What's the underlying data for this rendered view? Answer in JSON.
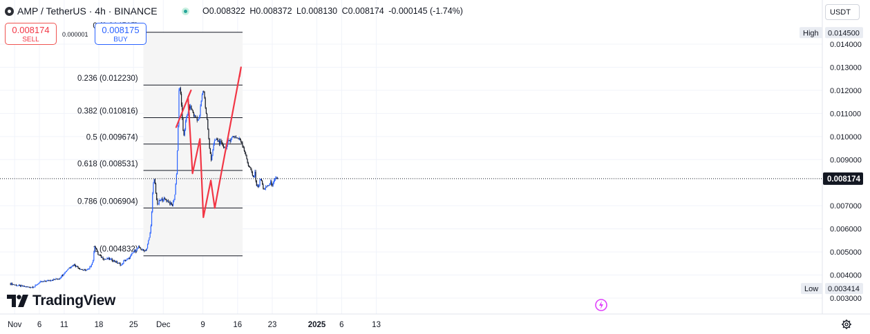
{
  "header": {
    "symbol_title": "AMP / TetherUS · 4h · BINANCE",
    "ohlc": [
      {
        "label": "O",
        "value": "0.008322"
      },
      {
        "label": "H",
        "value": "0.008372"
      },
      {
        "label": "L",
        "value": "0.008130"
      },
      {
        "label": "C",
        "value": "0.008174"
      }
    ],
    "change": "-0.000145 (-1.74%)",
    "currency": "USDT"
  },
  "trade": {
    "sell_price": "0.008174",
    "sell_label": "SELL",
    "spread": "0.000001",
    "buy_price": "0.008175",
    "buy_label": "BUY"
  },
  "brand": "TradingView",
  "colors": {
    "candle": "#2962ff",
    "candle_dark": "#131722",
    "projection": "#f23645",
    "fib_line": "#131722",
    "fib_fill": "#f5f5f5",
    "axis_text": "#131722"
  },
  "chart_data": {
    "type": "candlestick",
    "symbol": "AMPUSDT",
    "interval": "4h",
    "ylim": [
      0.003,
      0.0148
    ],
    "y_ticks": [
      "0.014000",
      "0.013000",
      "0.012000",
      "0.011000",
      "0.010000",
      "0.009000",
      "0.007000",
      "0.006000",
      "0.005000",
      "0.004000",
      "0.003000"
    ],
    "price_labels": {
      "high": {
        "label": "High",
        "value": "0.014500"
      },
      "low": {
        "label": "Low",
        "value": "0.003414"
      },
      "last": {
        "value": "0.008174"
      }
    },
    "x_ticks": [
      "Nov",
      "6",
      "11",
      "18",
      "25",
      "Dec",
      "9",
      "16",
      "23",
      "2025",
      "6",
      "13"
    ],
    "x_tick_days": [
      1,
      6,
      11,
      18,
      25,
      31,
      39,
      46,
      53,
      62,
      67,
      74
    ],
    "fib_retracement": {
      "x_range_days": [
        27,
        47
      ],
      "levels": [
        {
          "ratio": "0",
          "price": 0.014515,
          "label": "0 (0.014515)"
        },
        {
          "ratio": "0.236",
          "price": 0.01223,
          "label": "0.236 (0.012230)"
        },
        {
          "ratio": "0.382",
          "price": 0.010816,
          "label": "0.382 (0.010816)"
        },
        {
          "ratio": "0.5",
          "price": 0.009674,
          "label": "0.5 (0.009674)"
        },
        {
          "ratio": "0.618",
          "price": 0.008531,
          "label": "0.618 (0.008531)"
        },
        {
          "ratio": "0.786",
          "price": 0.006904,
          "label": "0.786 (0.006904)"
        },
        {
          "ratio": "1",
          "price": 0.004832,
          "label": "1 (0.004832)"
        }
      ]
    },
    "projection_path": [
      {
        "day": 33.6,
        "price": 0.0104
      },
      {
        "day": 36.6,
        "price": 0.012
      },
      {
        "day": 36.0,
        "price": 0.0117
      },
      {
        "day": 36.9,
        "price": 0.0084
      },
      {
        "day": 38.4,
        "price": 0.0099
      },
      {
        "day": 39.1,
        "price": 0.0065
      },
      {
        "day": 40.6,
        "price": 0.0081
      },
      {
        "day": 41.4,
        "price": 0.0069
      },
      {
        "day": 46.7,
        "price": 0.013
      },
      {
        "day": 46.4,
        "price": 0.0126
      }
    ],
    "series": [
      {
        "day": 0,
        "price": 0.00363
      },
      {
        "day": 2,
        "price": 0.00353
      },
      {
        "day": 4,
        "price": 0.00347
      },
      {
        "day": 5,
        "price": 0.0035
      },
      {
        "day": 6,
        "price": 0.00368
      },
      {
        "day": 8,
        "price": 0.00377
      },
      {
        "day": 10,
        "price": 0.00385
      },
      {
        "day": 12,
        "price": 0.00432
      },
      {
        "day": 13,
        "price": 0.00445
      },
      {
        "day": 14,
        "price": 0.0043
      },
      {
        "day": 15,
        "price": 0.0042
      },
      {
        "day": 16,
        "price": 0.00425
      },
      {
        "day": 16.8,
        "price": 0.0046
      },
      {
        "day": 17.2,
        "price": 0.0053
      },
      {
        "day": 17.8,
        "price": 0.0049
      },
      {
        "day": 19,
        "price": 0.0047
      },
      {
        "day": 20,
        "price": 0.0047
      },
      {
        "day": 21,
        "price": 0.00462
      },
      {
        "day": 22,
        "price": 0.0045
      },
      {
        "day": 22.6,
        "price": 0.00442
      },
      {
        "day": 23,
        "price": 0.0046
      },
      {
        "day": 24,
        "price": 0.0047
      },
      {
        "day": 25,
        "price": 0.005
      },
      {
        "day": 26,
        "price": 0.0052
      },
      {
        "day": 27,
        "price": 0.00505
      },
      {
        "day": 27.6,
        "price": 0.0051
      },
      {
        "day": 28.3,
        "price": 0.00575
      },
      {
        "day": 28.6,
        "price": 0.0064
      },
      {
        "day": 28.9,
        "price": 0.0078
      },
      {
        "day": 29.2,
        "price": 0.0082
      },
      {
        "day": 29.5,
        "price": 0.0076
      },
      {
        "day": 29.8,
        "price": 0.007
      },
      {
        "day": 30.2,
        "price": 0.0072
      },
      {
        "day": 31,
        "price": 0.0073
      },
      {
        "day": 32,
        "price": 0.0072
      },
      {
        "day": 32.8,
        "price": 0.007
      },
      {
        "day": 33.3,
        "price": 0.0074
      },
      {
        "day": 33.7,
        "price": 0.0085
      },
      {
        "day": 34.0,
        "price": 0.0105
      },
      {
        "day": 34.2,
        "price": 0.0122
      },
      {
        "day": 34.5,
        "price": 0.0119
      },
      {
        "day": 34.8,
        "price": 0.0108
      },
      {
        "day": 35.1,
        "price": 0.01
      },
      {
        "day": 35.5,
        "price": 0.0106
      },
      {
        "day": 35.9,
        "price": 0.011
      },
      {
        "day": 36.3,
        "price": 0.0113
      },
      {
        "day": 36.7,
        "price": 0.0112
      },
      {
        "day": 37.2,
        "price": 0.0109
      },
      {
        "day": 37.7,
        "price": 0.0108
      },
      {
        "day": 38.2,
        "price": 0.0107
      },
      {
        "day": 38.7,
        "price": 0.0116
      },
      {
        "day": 39.1,
        "price": 0.0121
      },
      {
        "day": 39.5,
        "price": 0.0113
      },
      {
        "day": 39.9,
        "price": 0.0106
      },
      {
        "day": 40.3,
        "price": 0.0095
      },
      {
        "day": 40.7,
        "price": 0.009
      },
      {
        "day": 41.1,
        "price": 0.0096
      },
      {
        "day": 41.6,
        "price": 0.0099
      },
      {
        "day": 42.1,
        "price": 0.0098
      },
      {
        "day": 42.6,
        "price": 0.0097
      },
      {
        "day": 43.1,
        "price": 0.0096
      },
      {
        "day": 43.6,
        "price": 0.0095
      },
      {
        "day": 44.1,
        "price": 0.00975
      },
      {
        "day": 44.6,
        "price": 0.0099
      },
      {
        "day": 45.1,
        "price": 0.01
      },
      {
        "day": 45.6,
        "price": 0.01
      },
      {
        "day": 46.1,
        "price": 0.0099
      },
      {
        "day": 46.6,
        "price": 0.00985
      },
      {
        "day": 47.1,
        "price": 0.0096
      },
      {
        "day": 47.6,
        "price": 0.0092
      },
      {
        "day": 48.1,
        "price": 0.0088
      },
      {
        "day": 48.6,
        "price": 0.0086
      },
      {
        "day": 49.1,
        "price": 0.0082
      },
      {
        "day": 49.5,
        "price": 0.0084
      },
      {
        "day": 49.9,
        "price": 0.0078
      },
      {
        "day": 50.3,
        "price": 0.0079
      },
      {
        "day": 50.7,
        "price": 0.0082
      },
      {
        "day": 51.1,
        "price": 0.0078
      },
      {
        "day": 51.5,
        "price": 0.0077
      },
      {
        "day": 51.9,
        "price": 0.00785
      },
      {
        "day": 52.3,
        "price": 0.0079
      },
      {
        "day": 52.7,
        "price": 0.008
      },
      {
        "day": 53.1,
        "price": 0.0079
      },
      {
        "day": 53.5,
        "price": 0.0081
      },
      {
        "day": 53.9,
        "price": 0.0082
      },
      {
        "day": 54.3,
        "price": 0.00817
      }
    ]
  }
}
